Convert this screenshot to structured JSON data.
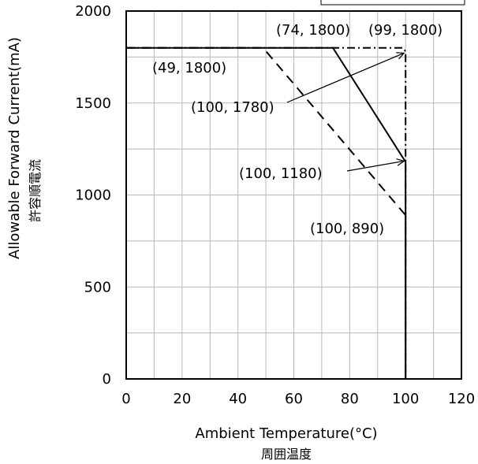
{
  "chart_data": {
    "type": "line",
    "xlabel": "Ambient Temperature(°C)",
    "xlabel_sub": "周囲温度",
    "ylabel": "Allowable Forward Current(mA)",
    "ylabel_sub": "許容順電流",
    "xlim": [
      0,
      120
    ],
    "ylim": [
      0,
      2000
    ],
    "xticks": [
      0,
      20,
      40,
      60,
      80,
      100,
      120
    ],
    "yticks": [
      0,
      500,
      1000,
      1500,
      2000
    ],
    "grid": true,
    "series": [
      {
        "style": "solid",
        "points": [
          [
            0,
            1800
          ],
          [
            74,
            1800
          ],
          [
            100,
            1180
          ],
          [
            100,
            0
          ]
        ]
      },
      {
        "style": "dashed",
        "points": [
          [
            0,
            1800
          ],
          [
            49,
            1800
          ],
          [
            100,
            890
          ],
          [
            100,
            0
          ]
        ]
      },
      {
        "style": "dash-dot",
        "points": [
          [
            0,
            1800
          ],
          [
            99,
            1800
          ],
          [
            100,
            1780
          ],
          [
            100,
            0
          ]
        ]
      }
    ],
    "annotations": [
      {
        "text": "(74, 1800)"
      },
      {
        "text": "(99, 1800)"
      },
      {
        "text": "(49, 1800)"
      },
      {
        "text": "(100, 1780)"
      },
      {
        "text": "(100, 1180)"
      },
      {
        "text": "(100, 890)"
      }
    ]
  }
}
